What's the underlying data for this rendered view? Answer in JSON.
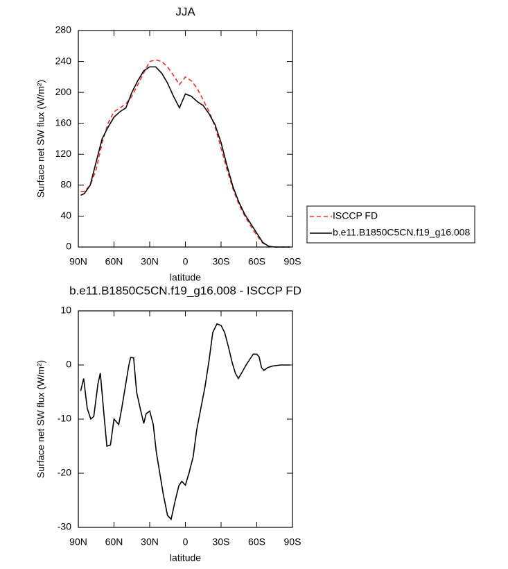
{
  "chart_data": [
    {
      "type": "line",
      "title": "JJA",
      "xlabel": "latitude",
      "ylabel": "Surface net SW flux (W/m²)",
      "x": [
        88,
        85,
        80,
        75,
        70,
        65,
        60,
        55,
        50,
        45,
        40,
        35,
        30,
        25,
        20,
        15,
        10,
        5,
        0,
        -5,
        -10,
        -15,
        -20,
        -25,
        -30,
        -35,
        -40,
        -45,
        -50,
        -55,
        -60,
        -65,
        -70,
        -75,
        -80,
        -85,
        -88
      ],
      "series": [
        {
          "name": "ISCCP FD",
          "color": "#e8302a",
          "line_style": "dashed",
          "values": [
            72,
            72,
            80,
            100,
            135,
            160,
            175,
            180,
            185,
            195,
            210,
            225,
            240,
            242,
            240,
            233,
            222,
            210,
            220,
            215,
            205,
            190,
            175,
            155,
            128,
            100,
            75,
            55,
            40,
            27,
            15,
            5,
            1,
            0,
            0,
            0,
            0
          ]
        },
        {
          "name": "b.e11.B1850C5CN.f19_g16.008",
          "color": "#000000",
          "line_style": "solid",
          "values": [
            67,
            69,
            80,
            110,
            140,
            155,
            168,
            175,
            180,
            200,
            215,
            228,
            233,
            233,
            225,
            212,
            195,
            180,
            198,
            195,
            188,
            183,
            172,
            158,
            135,
            105,
            78,
            58,
            42,
            30,
            18,
            6,
            1,
            0,
            0,
            0,
            0
          ]
        }
      ],
      "xlim": [
        90,
        -90
      ],
      "xticks": [
        {
          "value": 90,
          "label": "90N"
        },
        {
          "value": 60,
          "label": "60N"
        },
        {
          "value": 30,
          "label": "30N"
        },
        0,
        {
          "value": -30,
          "label": "30S"
        },
        {
          "value": -60,
          "label": "60S"
        },
        {
          "value": -90,
          "label": "90S"
        }
      ],
      "ylim": [
        0,
        280
      ],
      "yticks": [
        0,
        40,
        80,
        120,
        160,
        200,
        240,
        280
      ],
      "legend_position": "right"
    },
    {
      "type": "line",
      "title": "b.e11.B1850C5CN.f19_g16.008 - ISCCP FD",
      "xlabel": "latitude",
      "ylabel": "Surface net SW flux (W/m²)",
      "x": [
        88,
        85.5,
        82.5,
        79.5,
        77,
        73.5,
        71.5,
        68.5,
        66,
        63,
        60,
        56,
        53.5,
        50.5,
        47.5,
        46,
        43.5,
        41,
        38,
        35,
        33,
        30,
        27,
        24.5,
        21.5,
        18.5,
        15,
        12,
        8.5,
        5.5,
        3,
        0,
        -3,
        -6.5,
        -9.5,
        -13,
        -16.5,
        -20,
        -23,
        -26.5,
        -30,
        -33,
        -36,
        -39.5,
        -42,
        -44.5,
        -48,
        -51,
        -54,
        -57,
        -60,
        -62,
        -64,
        -66,
        -69,
        -73,
        -80,
        -88
      ],
      "values": [
        -4.8,
        -2.5,
        -8,
        -10,
        -9.5,
        -3.5,
        -1.5,
        -9,
        -15,
        -14.8,
        -10,
        -11,
        -8,
        -4,
        0,
        1.4,
        1.3,
        -5,
        -8,
        -10.8,
        -9,
        -8.5,
        -11,
        -16,
        -20,
        -24,
        -27.8,
        -28.5,
        -25,
        -22.3,
        -21.5,
        -22.2,
        -20,
        -17,
        -12,
        -8,
        -4,
        1,
        6,
        7.6,
        7.3,
        6,
        3.5,
        0.3,
        -1.5,
        -2.5,
        -1.2,
        0,
        1,
        2,
        2,
        1.5,
        -0.5,
        -1,
        -0.5,
        -0.2,
        0,
        0
      ],
      "color": "#000000",
      "xlim": [
        90,
        -90
      ],
      "xticks": [
        {
          "value": 90,
          "label": "90N"
        },
        {
          "value": 60,
          "label": "60N"
        },
        {
          "value": 30,
          "label": "30N"
        },
        0,
        {
          "value": -30,
          "label": "30S"
        },
        {
          "value": -60,
          "label": "60S"
        },
        {
          "value": -90,
          "label": "90S"
        }
      ],
      "ylim": [
        -30,
        10
      ],
      "yticks": [
        -30,
        -20,
        -10,
        0,
        10
      ]
    }
  ]
}
